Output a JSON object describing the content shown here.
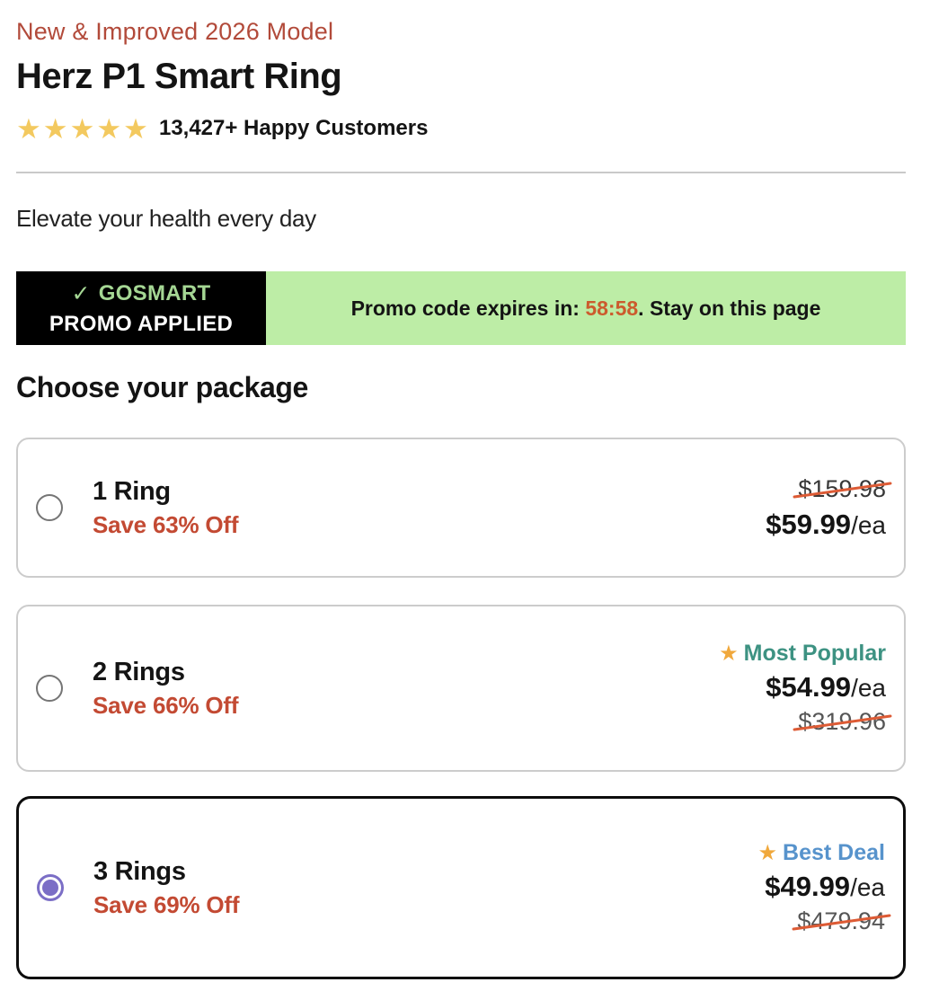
{
  "page": {
    "eyebrow": "New & Improved 2026 Model",
    "title": "Herz P1 Smart Ring",
    "rating": {
      "stars": "★★★★★",
      "label": "13,427+ Happy Customers"
    },
    "tagline": "Elevate your health every day"
  },
  "promo": {
    "check_icon": "✓",
    "code": "GOSMART",
    "applied_label": "PROMO APPLIED",
    "expires_prefix": "Promo code expires in: ",
    "timer": "58:58",
    "expires_suffix": ". Stay on this page",
    "colors": {
      "box_bg": "#000000",
      "banner_bg": "#bdeda6",
      "code_green": "#a5d794",
      "timer_orange": "#cc5b2d"
    }
  },
  "packages": {
    "heading": "Choose your package",
    "items": [
      {
        "title": "1 Ring",
        "save_label": "Save 63% Off",
        "original_price": "$159.98",
        "price": "$59.99",
        "unit": "/ea",
        "badge": null,
        "selected": false
      },
      {
        "title": "2 Rings",
        "save_label": "Save 66% Off",
        "original_price": "$319.96",
        "price": "$54.99",
        "unit": "/ea",
        "badge": "Most Popular",
        "badge_star": "★",
        "badge_color": "#3d9282",
        "selected": false
      },
      {
        "title": "3 Rings",
        "save_label": "Save 69% Off",
        "original_price": "$479.94",
        "price": "$49.99",
        "unit": "/ea",
        "badge": "Best Deal",
        "badge_star": "★",
        "badge_color": "#5793cc",
        "selected": true
      }
    ]
  },
  "colors": {
    "eyebrow_red": "#b24a3a",
    "save_red": "#c34a33",
    "rating_star_gold": "#f3c95f",
    "badge_star_orange": "#f0a83c",
    "radio_purple": "#7b6ec6",
    "strike_line": "#dd5b35",
    "selected_card_border": "#0d0d0d"
  }
}
